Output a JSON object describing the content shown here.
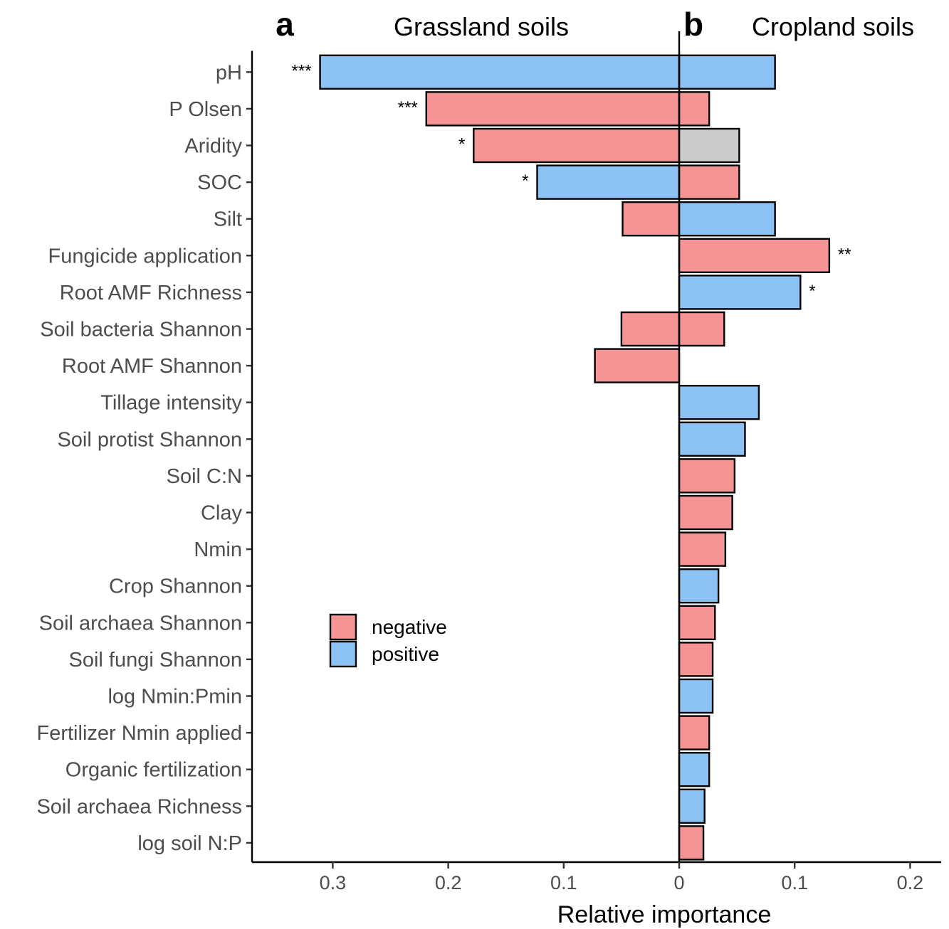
{
  "chart_data": {
    "type": "bar",
    "orientation": "horizontal",
    "xlabel": "Relative importance",
    "colors": {
      "negative": "#F49494",
      "positive": "#8DC2F5"
    },
    "legend": {
      "position": "bottom-left",
      "items": [
        {
          "key": "negative",
          "label": "negative"
        },
        {
          "key": "positive",
          "label": "positive"
        }
      ]
    },
    "categories": [
      "pH",
      "P Olsen",
      "Aridity",
      "SOC",
      "Silt",
      "Fungicide application",
      "Root AMF Richness",
      "Soil bacteria Shannon",
      "Root AMF Shannon",
      "Tillage intensity",
      "Soil protist Shannon",
      "Soil C:N",
      "Clay",
      "Nmin",
      "Crop Shannon",
      "Soil archaea Shannon",
      "Soil fungi Shannon",
      "log Nmin:Pmin",
      "Fertilizer Nmin applied",
      "Organic fertilization",
      "Soil archaea Richness",
      "log soil N:P"
    ],
    "panels": [
      {
        "letter": "a",
        "title": "Grassland soils",
        "side": "left",
        "xlim": [
          0.35,
          0
        ],
        "ticks": [
          0.3,
          0.2,
          0.1,
          0
        ],
        "tick_labels": [
          "0.3",
          "0.2",
          "0.1",
          "0"
        ],
        "values": [
          0.311,
          0.219,
          0.178,
          0.123,
          0.049,
          null,
          null,
          0.05,
          0.073,
          null,
          null,
          null,
          null,
          null,
          null,
          null,
          null,
          null,
          null,
          null,
          null,
          null
        ],
        "direction": [
          "positive",
          "negative",
          "negative",
          "positive",
          "negative",
          null,
          null,
          "negative",
          "negative",
          null,
          null,
          null,
          null,
          null,
          null,
          null,
          null,
          null,
          null,
          null,
          null,
          null
        ],
        "significance": [
          "***",
          "***",
          "*",
          "*",
          "",
          "",
          "",
          "",
          "",
          "",
          "",
          "",
          "",
          "",
          "",
          "",
          "",
          "",
          "",
          "",
          "",
          ""
        ]
      },
      {
        "letter": "b",
        "title": "Cropland soils",
        "side": "right",
        "xlim": [
          0,
          0.22
        ],
        "ticks": [
          0,
          0.1,
          0.2
        ],
        "tick_labels": [
          "0",
          "0.1",
          "0.2"
        ],
        "values": [
          0.083,
          0.026,
          0.052,
          0.052,
          0.083,
          0.13,
          0.105,
          0.039,
          null,
          0.069,
          0.057,
          0.048,
          0.046,
          0.04,
          0.034,
          0.031,
          0.029,
          0.029,
          0.026,
          0.026,
          0.022,
          0.021
        ],
        "direction": [
          "positive",
          "negative",
          null,
          "negative",
          "positive",
          "negative",
          "positive",
          "negative",
          null,
          "positive",
          "positive",
          "negative",
          "negative",
          "negative",
          "positive",
          "negative",
          "negative",
          "positive",
          "negative",
          "positive",
          "positive",
          "negative"
        ],
        "significance": [
          "",
          "",
          "",
          "",
          "",
          "**",
          "*",
          "",
          "",
          "",
          "",
          "",
          "",
          "",
          "",
          "",
          "",
          "",
          "",
          "",
          "",
          ""
        ]
      }
    ]
  }
}
